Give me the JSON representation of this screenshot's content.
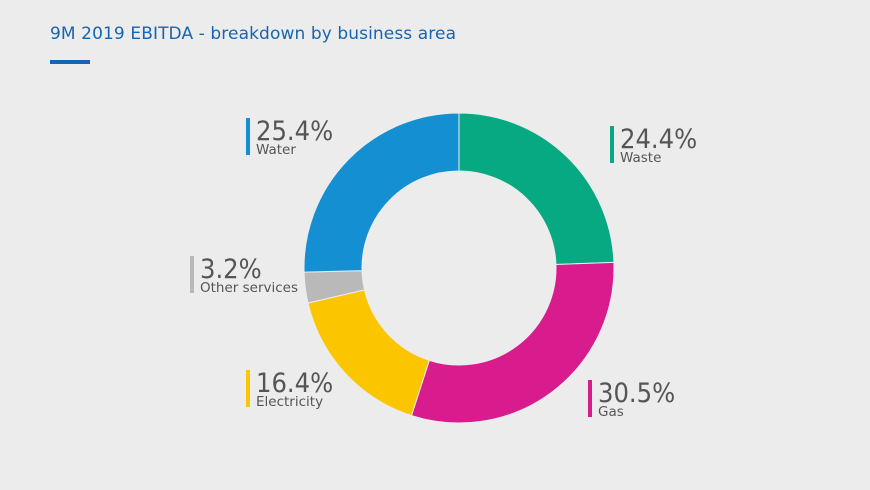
{
  "title": "9M 2019 EBITDA - breakdown by business area",
  "chart_data": {
    "type": "pie",
    "variant": "donut",
    "title": "9M 2019 EBITDA - breakdown by business area",
    "slices": [
      {
        "name": "Waste",
        "value": 24.4,
        "value_label": "24.4%",
        "color": "#06a981"
      },
      {
        "name": "Gas",
        "value": 30.5,
        "value_label": "30.5%",
        "color": "#d81b8d"
      },
      {
        "name": "Electricity",
        "value": 16.4,
        "value_label": "16.4%",
        "color": "#fbc500"
      },
      {
        "name": "Other services",
        "value": 3.2,
        "value_label": "3.2%",
        "color": "#b9b9b9"
      },
      {
        "name": "Water",
        "value": 25.4,
        "value_label": "25.4%",
        "color": "#138fd2"
      }
    ],
    "start_angle_deg": 0,
    "direction": "clockwise"
  }
}
